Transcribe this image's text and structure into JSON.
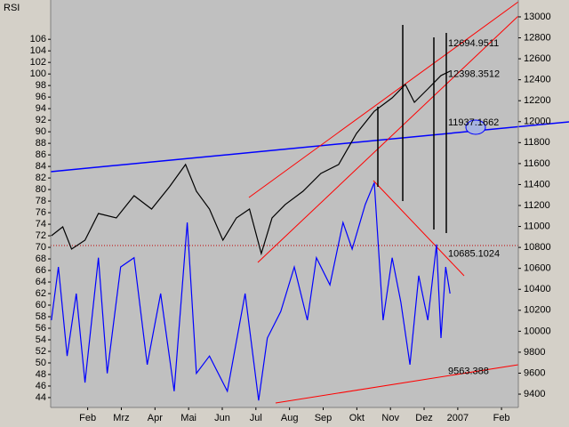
{
  "chart_data": {
    "type": "line",
    "y_label": "RSI",
    "xlim": [
      -0.1,
      13.8
    ],
    "xticks": [
      {
        "value": 1,
        "label": "Feb"
      },
      {
        "value": 2,
        "label": "Mrz"
      },
      {
        "value": 3,
        "label": "Apr"
      },
      {
        "value": 4,
        "label": "Mai"
      },
      {
        "value": 5,
        "label": "Jun"
      },
      {
        "value": 6,
        "label": "Jul"
      },
      {
        "value": 7,
        "label": "Aug"
      },
      {
        "value": 8,
        "label": "Sep"
      },
      {
        "value": 9,
        "label": "Okt"
      },
      {
        "value": 10,
        "label": "Nov"
      },
      {
        "value": 11,
        "label": "Dez"
      },
      {
        "value": 12,
        "label": "2007"
      },
      {
        "value": 13.3,
        "label": "Feb"
      }
    ],
    "ylim": [
      42.3,
      112.8
    ],
    "yticks": [
      44,
      46,
      48,
      50,
      52,
      54,
      56,
      58,
      60,
      62,
      64,
      66,
      68,
      70,
      72,
      74,
      76,
      78,
      80,
      82,
      84,
      86,
      88,
      90,
      92,
      94,
      96,
      98,
      100,
      102,
      104,
      106
    ],
    "y2lim": [
      9273,
      13161
    ],
    "y2ticks": [
      9400,
      9600,
      9800,
      10000,
      10200,
      10400,
      10600,
      10800,
      11000,
      11200,
      11400,
      11600,
      11800,
      12000,
      12200,
      12400,
      12600,
      12800,
      13000
    ],
    "series": [
      {
        "color": "#000000",
        "axis": "y2",
        "x": [
          -0.08,
          0.26,
          0.52,
          0.92,
          1.32,
          1.85,
          2.38,
          2.9,
          3.43,
          3.91,
          4.23,
          4.62,
          5.02,
          5.42,
          5.81,
          6.16,
          6.48,
          6.87,
          7.4,
          7.93,
          8.46,
          8.99,
          9.52,
          10.05,
          10.44,
          10.71,
          11.11,
          11.5,
          11.77
        ],
        "values": [
          10911,
          10996,
          10784,
          10869,
          11124,
          11081,
          11293,
          11166,
          11378,
          11591,
          11336,
          11166,
          10869,
          11081,
          11166,
          10742,
          11081,
          11209,
          11336,
          11506,
          11591,
          11888,
          12100,
          12227,
          12355,
          12185,
          12312,
          12440,
          12482
        ]
      },
      {
        "color": "#0000ff",
        "x": [
          -0.08,
          0.13,
          0.39,
          0.66,
          0.92,
          1.32,
          1.58,
          1.98,
          2.38,
          2.77,
          3.17,
          3.57,
          3.96,
          4.23,
          4.62,
          5.15,
          5.68,
          6.08,
          6.34,
          6.74,
          7.14,
          7.53,
          7.8,
          8.2,
          8.59,
          8.86,
          9.25,
          9.52,
          9.78,
          10.05,
          10.31,
          10.58,
          10.84,
          11.11,
          11.37,
          11.5,
          11.64,
          11.77
        ],
        "values": [
          57.4,
          66.6,
          51.2,
          62,
          46.6,
          68.2,
          48.2,
          66.6,
          68.2,
          49.7,
          62,
          45.1,
          74.3,
          48.2,
          51.2,
          45.1,
          62,
          43.5,
          54.3,
          58.9,
          66.6,
          57.4,
          68.2,
          63.5,
          74.3,
          69.7,
          77.4,
          81.2,
          57.4,
          68.2,
          60.5,
          49.7,
          65.1,
          57.4,
          70.5,
          54.3,
          66.6,
          62
        ]
      }
    ],
    "levels": [
      {
        "value": 12694.9511,
        "color": "#ff0000"
      },
      {
        "value": 12398.3512,
        "color": "#ff0000"
      },
      {
        "value": 11937.1662,
        "color": "#0000ff"
      },
      {
        "value": 10685.1024,
        "color": "#ff0000"
      },
      {
        "value": 9563.388,
        "color": "#ff0000"
      }
    ]
  }
}
